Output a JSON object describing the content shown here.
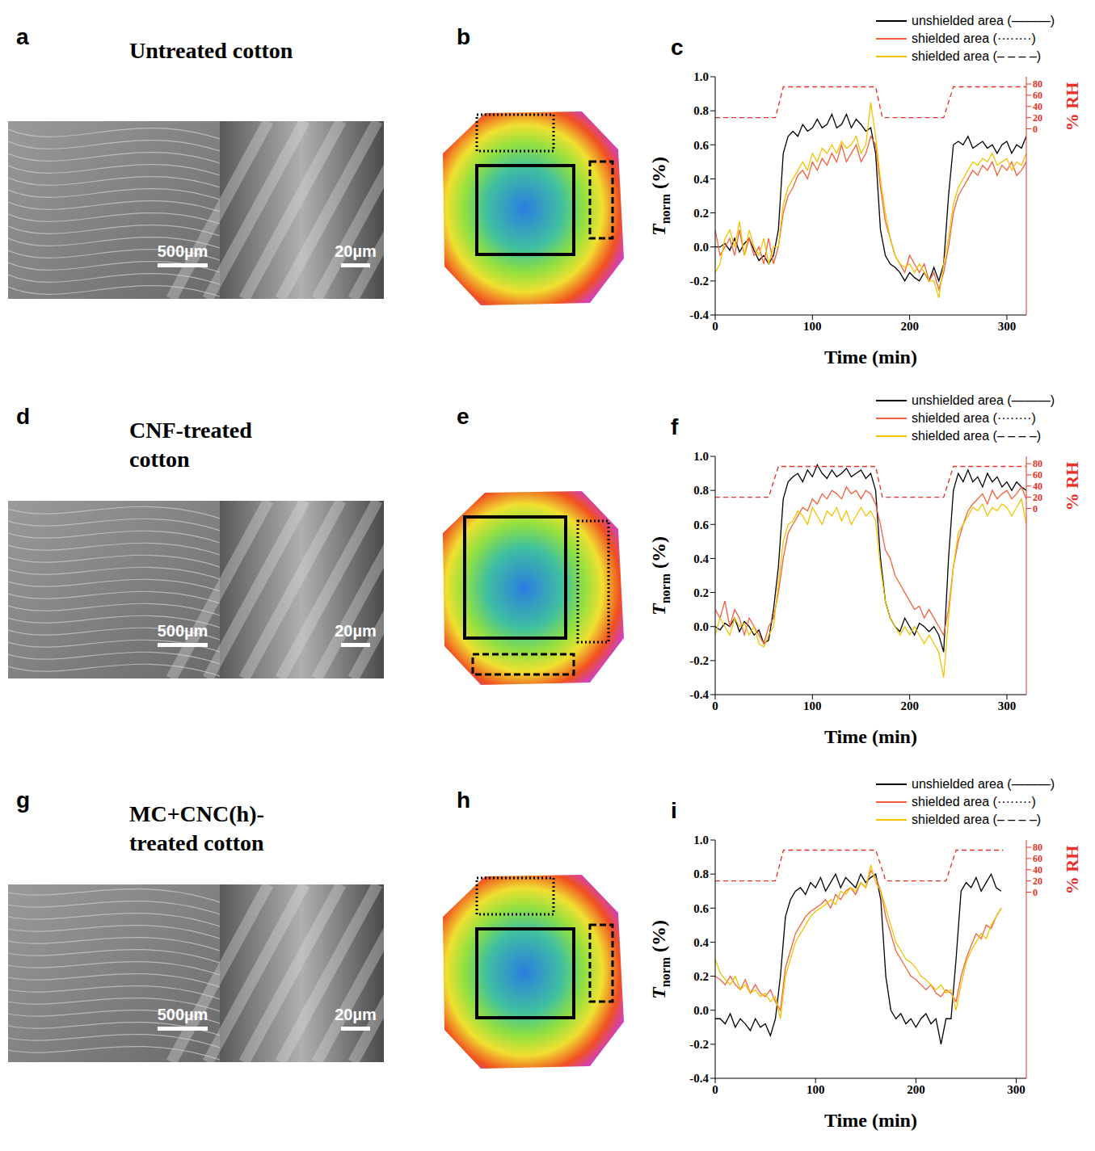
{
  "figure": {
    "rows": [
      {
        "letters": [
          "a",
          "b",
          "c"
        ],
        "title": "Untreated cotton",
        "scale_bars": [
          "500µm",
          "20µm"
        ]
      },
      {
        "letters": [
          "d",
          "e",
          "f"
        ],
        "title": "CNF-treated cotton",
        "scale_bars": [
          "500µm",
          "20µm"
        ]
      },
      {
        "letters": [
          "g",
          "h",
          "i"
        ],
        "title": "MC+CNC(h)-treated cotton",
        "scale_bars": [
          "500µm",
          "20µm"
        ]
      }
    ]
  },
  "chart_data": [
    {
      "type": "line",
      "xlabel": "Time (min)",
      "ylabel": {
        "symbol": "T",
        "subscript": "norm",
        "unit": "(%)"
      },
      "y2label": "% RH",
      "xlim": [
        0,
        320
      ],
      "xticks": [
        0,
        100,
        200,
        300
      ],
      "ylim": [
        -0.4,
        1.0
      ],
      "yticks": [
        -0.4,
        -0.2,
        {
          "value": 0,
          "label": "0.0"
        },
        0.2,
        0.4,
        0.6,
        0.8,
        {
          "value": 1,
          "label": "1.0"
        }
      ],
      "y2lim": [
        -332,
        93
      ],
      "y2ticks": [
        0,
        20,
        40,
        60,
        80
      ],
      "legend": "upper right",
      "grid": false,
      "x": [
        0,
        5,
        10,
        15,
        20,
        25,
        30,
        35,
        40,
        45,
        50,
        55,
        60,
        65,
        70,
        75,
        80,
        85,
        90,
        95,
        100,
        105,
        110,
        115,
        120,
        125,
        130,
        135,
        140,
        145,
        150,
        155,
        160,
        165,
        170,
        175,
        180,
        185,
        190,
        195,
        200,
        205,
        210,
        215,
        220,
        225,
        230,
        235,
        240,
        245,
        250,
        255,
        260,
        265,
        270,
        275,
        280,
        285,
        290,
        295,
        300,
        305,
        310,
        315,
        320
      ],
      "series": [
        {
          "name": "unshielded area (———)",
          "color": "#000000",
          "line_style": "solid",
          "values": [
            0.0,
            0.0,
            0.02,
            -0.02,
            0.05,
            -0.03,
            0.02,
            0.05,
            -0.02,
            -0.08,
            -0.05,
            -0.1,
            -0.05,
            0.1,
            0.55,
            0.65,
            0.68,
            0.65,
            0.72,
            0.68,
            0.7,
            0.75,
            0.7,
            0.72,
            0.78,
            0.7,
            0.72,
            0.78,
            0.7,
            0.75,
            0.72,
            0.68,
            0.7,
            0.55,
            0.1,
            -0.05,
            -0.1,
            -0.12,
            -0.15,
            -0.2,
            -0.15,
            -0.18,
            -0.2,
            -0.15,
            -0.2,
            -0.12,
            -0.2,
            -0.1,
            0.3,
            0.6,
            0.62,
            0.6,
            0.65,
            0.58,
            0.6,
            0.62,
            0.58,
            0.6,
            0.55,
            0.6,
            0.62,
            0.55,
            0.6,
            0.58,
            0.65
          ]
        },
        {
          "name": "shielded area (········)",
          "color": "#f4603c",
          "line_style": "solid",
          "values": [
            0.1,
            -0.05,
            0.0,
            0.05,
            -0.05,
            0.1,
            -0.05,
            0.05,
            -0.05,
            0.0,
            -0.1,
            0.05,
            -0.1,
            0.0,
            0.2,
            0.3,
            0.35,
            0.42,
            0.45,
            0.4,
            0.5,
            0.45,
            0.52,
            0.48,
            0.55,
            0.5,
            0.6,
            0.5,
            0.55,
            0.6,
            0.5,
            0.55,
            0.65,
            0.6,
            0.35,
            0.15,
            0.05,
            -0.05,
            -0.1,
            -0.15,
            -0.05,
            -0.1,
            -0.15,
            -0.1,
            -0.2,
            -0.15,
            -0.25,
            -0.15,
            0.0,
            0.2,
            0.3,
            0.35,
            0.4,
            0.45,
            0.42,
            0.48,
            0.45,
            0.5,
            0.42,
            0.48,
            0.45,
            0.5,
            0.42,
            0.45,
            0.5
          ]
        },
        {
          "name": "shielded area (– – – –)",
          "color": "#f2c400",
          "line_style": "solid",
          "values": [
            -0.15,
            -0.1,
            0.05,
            0.1,
            0.0,
            0.15,
            -0.05,
            0.1,
            0.0,
            -0.05,
            0.05,
            -0.1,
            0.0,
            0.0,
            0.25,
            0.35,
            0.4,
            0.45,
            0.5,
            0.45,
            0.55,
            0.5,
            0.58,
            0.55,
            0.6,
            0.55,
            0.62,
            0.58,
            0.6,
            0.65,
            0.55,
            0.6,
            0.85,
            0.65,
            0.4,
            0.2,
            0.05,
            -0.05,
            -0.1,
            -0.12,
            -0.1,
            -0.15,
            -0.1,
            -0.15,
            -0.2,
            -0.2,
            -0.3,
            -0.1,
            0.05,
            0.25,
            0.35,
            0.4,
            0.45,
            0.5,
            0.48,
            0.52,
            0.5,
            0.55,
            0.48,
            0.5,
            0.52,
            0.45,
            0.5,
            0.48,
            0.55
          ]
        }
      ],
      "rh": {
        "axis": "y2",
        "color": "#e8302a",
        "line_style": "dashed",
        "x": [
          0,
          62,
          70,
          165,
          172,
          235,
          245,
          320
        ],
        "values": [
          20,
          20,
          75,
          75,
          20,
          20,
          75,
          75
        ]
      }
    },
    {
      "type": "line",
      "xlabel": "Time (min)",
      "ylabel": {
        "symbol": "T",
        "subscript": "norm",
        "unit": "(%)"
      },
      "y2label": "% RH",
      "xlim": [
        0,
        320
      ],
      "xticks": [
        0,
        100,
        200,
        300
      ],
      "ylim": [
        -0.4,
        1.0
      ],
      "yticks": [
        -0.4,
        -0.2,
        {
          "value": 0,
          "label": "0.0"
        },
        0.2,
        0.4,
        0.6,
        0.8,
        {
          "value": 1,
          "label": "1.0"
        }
      ],
      "y2lim": [
        -332,
        93
      ],
      "y2ticks": [
        0,
        20,
        40,
        60,
        80
      ],
      "legend": "upper right",
      "grid": false,
      "x": [
        0,
        5,
        10,
        15,
        20,
        25,
        30,
        35,
        40,
        45,
        50,
        55,
        60,
        65,
        70,
        75,
        80,
        85,
        90,
        95,
        100,
        105,
        110,
        115,
        120,
        125,
        130,
        135,
        140,
        145,
        150,
        155,
        160,
        165,
        170,
        175,
        180,
        185,
        190,
        195,
        200,
        205,
        210,
        215,
        220,
        225,
        230,
        235,
        240,
        245,
        250,
        255,
        260,
        265,
        270,
        275,
        280,
        285,
        290,
        295,
        300,
        305,
        310,
        315,
        320
      ],
      "series": [
        {
          "name": "unshielded area (———)",
          "color": "#000000",
          "line_style": "solid",
          "values": [
            0.0,
            -0.02,
            0.02,
            0.0,
            0.05,
            -0.03,
            0.03,
            0.0,
            -0.05,
            -0.02,
            -0.1,
            -0.08,
            0.1,
            0.35,
            0.75,
            0.85,
            0.88,
            0.9,
            0.85,
            0.92,
            0.88,
            0.95,
            0.9,
            0.87,
            0.92,
            0.88,
            0.9,
            0.93,
            0.88,
            0.9,
            0.92,
            0.87,
            0.9,
            0.8,
            0.4,
            0.15,
            0.05,
            0.0,
            -0.03,
            0.05,
            0.0,
            -0.05,
            0.02,
            0.0,
            -0.03,
            0.0,
            -0.05,
            -0.15,
            0.4,
            0.8,
            0.9,
            0.85,
            0.92,
            0.85,
            0.88,
            0.82,
            0.9,
            0.85,
            0.88,
            0.82,
            0.85,
            0.8,
            0.85,
            0.82,
            0.8
          ]
        },
        {
          "name": "shielded area (········)",
          "color": "#f4603c",
          "line_style": "solid",
          "values": [
            0.1,
            0.05,
            0.15,
            0.0,
            0.1,
            0.05,
            -0.05,
            0.05,
            0.0,
            -0.05,
            -0.1,
            0.0,
            0.05,
            0.2,
            0.4,
            0.55,
            0.6,
            0.65,
            0.7,
            0.68,
            0.75,
            0.72,
            0.78,
            0.75,
            0.8,
            0.78,
            0.75,
            0.82,
            0.78,
            0.8,
            0.75,
            0.8,
            0.78,
            0.72,
            0.6,
            0.45,
            0.4,
            0.3,
            0.25,
            0.2,
            0.15,
            0.1,
            0.12,
            0.05,
            0.1,
            0.05,
            0.0,
            -0.05,
            0.1,
            0.35,
            0.5,
            0.6,
            0.68,
            0.72,
            0.75,
            0.78,
            0.72,
            0.8,
            0.75,
            0.78,
            0.8,
            0.75,
            0.78,
            0.82,
            0.75
          ]
        },
        {
          "name": "shielded area (– – – –)",
          "color": "#f2c400",
          "line_style": "solid",
          "values": [
            -0.05,
            0.05,
            0.0,
            -0.05,
            0.05,
            0.0,
            0.02,
            -0.05,
            0.0,
            -0.1,
            -0.12,
            -0.05,
            0.0,
            0.25,
            0.5,
            0.6,
            0.62,
            0.68,
            0.65,
            0.6,
            0.7,
            0.65,
            0.6,
            0.68,
            0.65,
            0.7,
            0.62,
            0.68,
            0.6,
            0.65,
            0.7,
            0.65,
            0.68,
            0.62,
            0.35,
            0.15,
            0.05,
            0.0,
            -0.05,
            0.0,
            -0.05,
            0.0,
            -0.05,
            -0.1,
            -0.05,
            -0.1,
            -0.15,
            -0.3,
            0.05,
            0.35,
            0.55,
            0.6,
            0.65,
            0.7,
            0.68,
            0.72,
            0.65,
            0.7,
            0.68,
            0.72,
            0.7,
            0.65,
            0.7,
            0.75,
            0.6
          ]
        }
      ],
      "rh": {
        "axis": "y2",
        "color": "#e8302a",
        "line_style": "dashed",
        "x": [
          0,
          55,
          65,
          165,
          172,
          235,
          245,
          320
        ],
        "values": [
          20,
          20,
          75,
          75,
          20,
          20,
          75,
          75
        ]
      }
    },
    {
      "type": "line",
      "xlabel": "Time (min)",
      "ylabel": {
        "symbol": "T",
        "subscript": "norm",
        "unit": "(%)"
      },
      "y2label": "% RH",
      "xlim": [
        0,
        310
      ],
      "xticks": [
        0,
        100,
        200,
        300
      ],
      "ylim": [
        -0.4,
        1.0
      ],
      "yticks": [
        -0.4,
        -0.2,
        {
          "value": 0,
          "label": "0.0"
        },
        0.2,
        0.4,
        0.6,
        0.8,
        {
          "value": 1,
          "label": "1.0"
        }
      ],
      "y2lim": [
        -332,
        93
      ],
      "y2ticks": [
        0,
        20,
        40,
        60,
        80
      ],
      "legend": "upper right",
      "grid": false,
      "x": [
        0,
        5,
        10,
        15,
        20,
        25,
        30,
        35,
        40,
        45,
        50,
        55,
        60,
        65,
        70,
        75,
        80,
        85,
        90,
        95,
        100,
        105,
        110,
        115,
        120,
        125,
        130,
        135,
        140,
        145,
        150,
        155,
        160,
        165,
        170,
        175,
        180,
        185,
        190,
        195,
        200,
        205,
        210,
        215,
        220,
        225,
        230,
        235,
        240,
        245,
        250,
        255,
        260,
        265,
        270,
        275,
        280,
        285
      ],
      "series": [
        {
          "name": "unshielded area (———)",
          "color": "#000000",
          "line_style": "solid",
          "values": [
            -0.05,
            -0.05,
            -0.08,
            -0.02,
            -0.1,
            -0.05,
            -0.08,
            -0.12,
            -0.05,
            -0.1,
            -0.08,
            -0.15,
            -0.05,
            0.2,
            0.55,
            0.65,
            0.7,
            0.72,
            0.68,
            0.75,
            0.72,
            0.78,
            0.7,
            0.75,
            0.8,
            0.72,
            0.78,
            0.75,
            0.72,
            0.8,
            0.75,
            0.78,
            0.8,
            0.65,
            0.2,
            0.0,
            -0.05,
            -0.02,
            -0.08,
            -0.05,
            -0.1,
            -0.05,
            -0.02,
            -0.08,
            -0.05,
            -0.2,
            -0.05,
            -0.05,
            0.3,
            0.7,
            0.75,
            0.72,
            0.78,
            0.7,
            0.75,
            0.8,
            0.72,
            0.7
          ]
        },
        {
          "name": "shielded area (········)",
          "color": "#f4603c",
          "line_style": "solid",
          "values": [
            0.2,
            0.18,
            0.15,
            0.2,
            0.15,
            0.12,
            0.18,
            0.1,
            0.15,
            0.1,
            0.08,
            0.12,
            0.05,
            0.0,
            0.25,
            0.35,
            0.45,
            0.5,
            0.55,
            0.58,
            0.6,
            0.62,
            0.65,
            0.6,
            0.68,
            0.65,
            0.7,
            0.72,
            0.68,
            0.75,
            0.72,
            0.82,
            0.78,
            0.7,
            0.55,
            0.45,
            0.35,
            0.3,
            0.25,
            0.2,
            0.18,
            0.15,
            0.12,
            0.15,
            0.1,
            0.08,
            0.12,
            0.1,
            0.05,
            0.2,
            0.3,
            0.38,
            0.45,
            0.42,
            0.5,
            0.48,
            0.55,
            0.6
          ]
        },
        {
          "name": "shielded area (– – – –)",
          "color": "#f2c400",
          "line_style": "solid",
          "values": [
            0.3,
            0.22,
            0.18,
            0.15,
            0.2,
            0.12,
            0.15,
            0.1,
            0.12,
            0.08,
            0.1,
            0.05,
            0.08,
            -0.05,
            0.2,
            0.3,
            0.4,
            0.45,
            0.5,
            0.55,
            0.58,
            0.6,
            0.62,
            0.65,
            0.62,
            0.7,
            0.68,
            0.72,
            0.7,
            0.75,
            0.72,
            0.85,
            0.75,
            0.7,
            0.6,
            0.5,
            0.4,
            0.35,
            0.3,
            0.28,
            0.25,
            0.2,
            0.18,
            0.15,
            0.12,
            0.15,
            0.1,
            0.12,
            0.0,
            0.15,
            0.28,
            0.35,
            0.4,
            0.45,
            0.42,
            0.5,
            0.55,
            0.6
          ]
        }
      ],
      "rh": {
        "axis": "y2",
        "color": "#e8302a",
        "line_style": "dashed",
        "x": [
          0,
          60,
          68,
          160,
          170,
          230,
          240,
          287
        ],
        "values": [
          20,
          20,
          75,
          75,
          20,
          20,
          75,
          75
        ]
      }
    }
  ]
}
